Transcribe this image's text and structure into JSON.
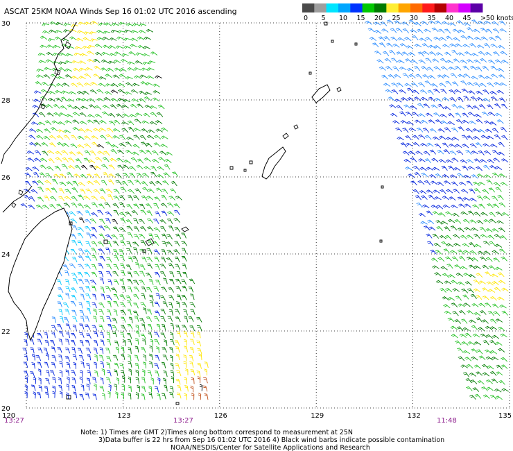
{
  "title": "ASCAT 25KM NOAA Winds Sep 16 01:02 UTC 2016 ascending",
  "legend": {
    "labels": [
      "0",
      "5",
      "10",
      "15",
      "20",
      "25",
      "30",
      "35",
      "40",
      "45",
      ">50 knots"
    ],
    "colors": [
      "#4a4a4a",
      "#9e9e9e",
      "#00e5ff",
      "#00a6ff",
      "#0033ff",
      "#00c800",
      "#007a00",
      "#ffee33",
      "#ffa500",
      "#ff6a00",
      "#ff1a1a",
      "#b30000",
      "#ff33cc",
      "#d400ff",
      "#5b00a6"
    ]
  },
  "axes": {
    "lon_ticks": [
      "120",
      "123",
      "126",
      "129",
      "132",
      "135"
    ],
    "lat_ticks": [
      "30",
      "28",
      "26",
      "24",
      "22",
      "20"
    ],
    "lon_range": [
      120,
      135
    ],
    "lat_range": [
      20,
      30
    ]
  },
  "swath_times": [
    "13:27",
    "13:27",
    "11:48"
  ],
  "notes": [
    "Note: 1) Times are GMT 2)Times along bottom correspond to measurement at 25N",
    "3)Data buffer is 22 hrs from Sep 16 01:02 UTC 2016 4) Black wind barbs indicate possible contamination",
    "NOAA/NESDIS/Center for Satellite Applications and Research"
  ]
}
